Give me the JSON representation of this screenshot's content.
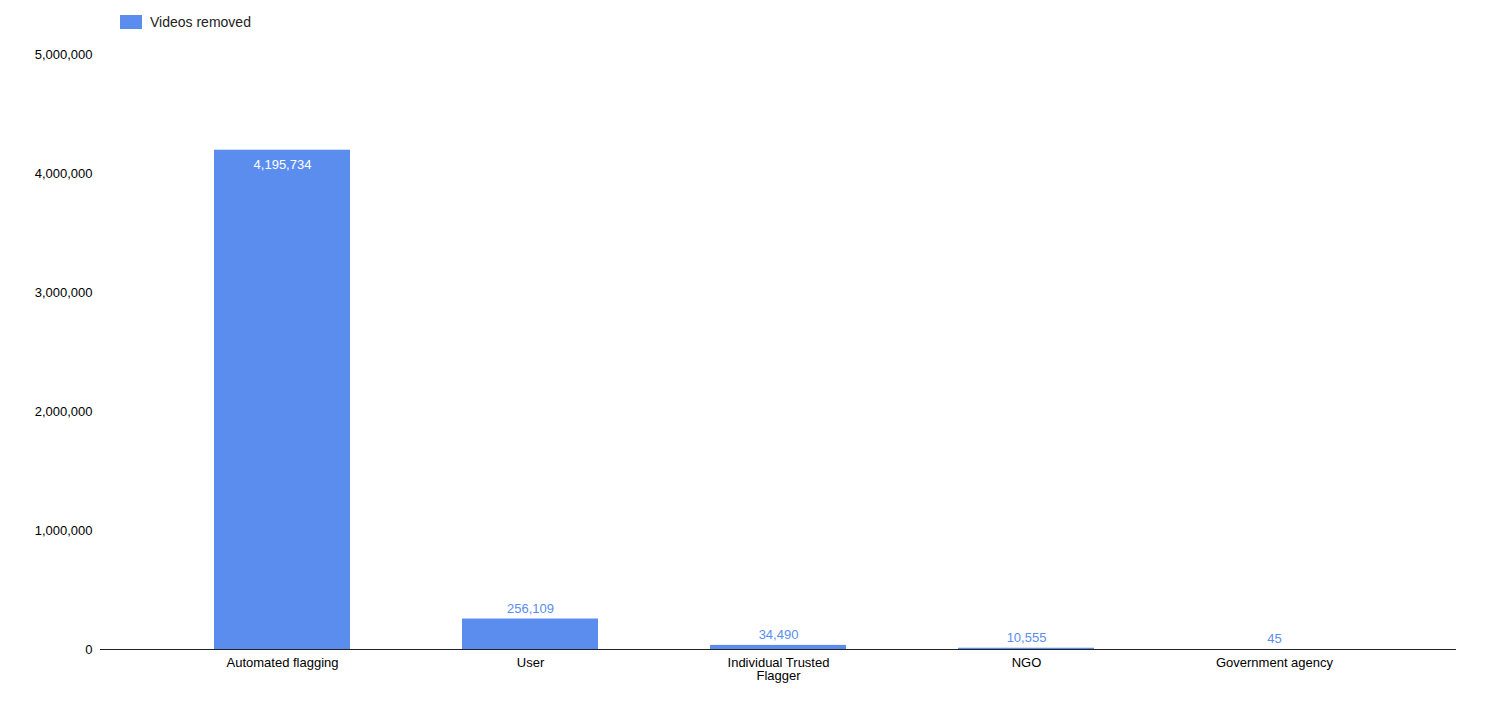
{
  "chart_data": {
    "type": "bar",
    "categories": [
      "Automated flagging",
      "User",
      "Individual Trusted\nFlagger",
      "NGO",
      "Government agency"
    ],
    "series": [
      {
        "name": "Videos removed",
        "color": "#5b8def",
        "values": [
          4195734,
          256109,
          34490,
          10555,
          45
        ],
        "value_labels": [
          "4,195,734",
          "256,109",
          "34,490",
          "10,555",
          "45"
        ]
      }
    ],
    "ylim": [
      0,
      5000000
    ],
    "yticks": [
      0,
      {
        "value": 1000000,
        "label": "1,000,000"
      },
      {
        "value": 2000000,
        "label": "2,000,000"
      },
      {
        "value": 3000000,
        "label": "3,000,000"
      },
      {
        "value": 4000000,
        "label": "4,000,000"
      },
      {
        "value": 5000000,
        "label": "5,000,000"
      }
    ],
    "data_labels": true,
    "legend": "upper left",
    "grid": false
  }
}
